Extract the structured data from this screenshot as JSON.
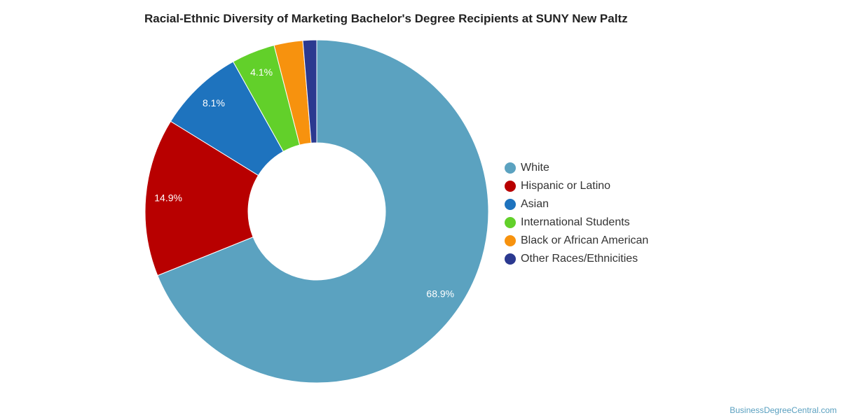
{
  "chart_title": "Racial-Ethnic Diversity of Marketing Bachelor's Degree Recipients at SUNY New Paltz",
  "source_credit": "BusinessDegreeCentral.com",
  "chart_data": {
    "type": "pie",
    "variant": "donut",
    "title": "Racial-Ethnic Diversity of Marketing Bachelor's Degree Recipients at SUNY New Paltz",
    "legend_position": "right",
    "slices": [
      {
        "name": "White",
        "value": 68.9,
        "label": "68.9%",
        "color": "#5ba2c0"
      },
      {
        "name": "Hispanic or Latino",
        "value": 14.9,
        "label": "14.9%",
        "color": "#b80000"
      },
      {
        "name": "Asian",
        "value": 8.1,
        "label": "8.1%",
        "color": "#1e73be"
      },
      {
        "name": "International Students",
        "value": 4.1,
        "label": "4.1%",
        "color": "#62d02a"
      },
      {
        "name": "Black or African American",
        "value": 2.7,
        "label": "",
        "color": "#f7920e"
      },
      {
        "name": "Other Races/Ethnicities",
        "value": 1.3,
        "label": "",
        "color": "#2b3990"
      }
    ]
  }
}
